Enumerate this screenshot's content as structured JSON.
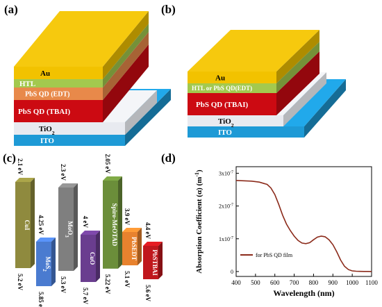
{
  "panels": {
    "a": {
      "label": "(a)",
      "layers": [
        "Au",
        "HTL",
        "PbS QD (EDT)",
        "PbS QD (TBAI)",
        "TiO",
        "ITO"
      ]
    },
    "b": {
      "label": "(b)",
      "layers": [
        "Au",
        "HTL or PbS QD(EDT)",
        "PbS QD (TBAI)",
        "TiO",
        "ITO"
      ]
    },
    "c": {
      "label": "(c)",
      "materials": [
        {
          "name": "CuI",
          "top": "2.1 eV",
          "bottom": "5.2 eV",
          "color": "#8f8a3e"
        },
        {
          "name": "MoS",
          "sub": "2",
          "top": "4.25 eV",
          "bottom": "5.85 eV",
          "color": "#4a7bd0"
        },
        {
          "name": "MoO",
          "sub": "3",
          "top": "2.3 eV",
          "bottom": "5.3 eV",
          "color": "#7f7f7f"
        },
        {
          "name": "CuO",
          "top": "4 eV",
          "bottom": "5.7 eV",
          "color": "#6a3d8f"
        },
        {
          "name": "Spiro-MeOTAD",
          "top": "2.05 eV",
          "bottom": "5.22 eV",
          "color": "#6b8e3a"
        },
        {
          "name": "PbSEDT",
          "top": "3.9 eV",
          "bottom": "5.1 eV",
          "color": "#e8822e"
        },
        {
          "name": "PbSTBAI",
          "top": "4.4 eV",
          "bottom": "5.6 eV",
          "color": "#c0171d"
        }
      ]
    },
    "d": {
      "label": "(d)"
    }
  },
  "tio_sub": "2",
  "chart_data": {
    "type": "line",
    "xlabel": "Wavelength (nm)",
    "ylabel": "Absorption Coefficient (α) (m",
    "ylabel_sup": "-1",
    "ylabel_close": ")",
    "xlim": [
      400,
      1100
    ],
    "ylim": [
      -1.5e-08,
      3.2e-07
    ],
    "x_ticks": [
      400,
      500,
      600,
      700,
      800,
      900,
      1000,
      1100
    ],
    "y_ticks": [
      {
        "value": 0,
        "label": "0"
      },
      {
        "value": 1e-07,
        "label": "1x10"
      },
      {
        "value": 2e-07,
        "label": "2x10"
      },
      {
        "value": 3e-07,
        "label": "3x10"
      }
    ],
    "y_tick_exp": "-7",
    "legend": "for PbS QD film",
    "legend_position": "bottom-left",
    "line_color": "#8b2a1a",
    "series": [
      {
        "x": [
          400,
          440,
          480,
          520,
          560,
          580,
          600,
          620,
          640,
          660,
          680,
          700,
          720,
          740,
          760,
          780,
          800,
          820,
          840,
          860,
          880,
          900,
          920,
          940,
          960,
          980,
          1000,
          1020,
          1040,
          1060,
          1080,
          1100
        ],
        "y": [
          2.78e-07,
          2.77e-07,
          2.76e-07,
          2.73e-07,
          2.66e-07,
          2.55e-07,
          2.35e-07,
          2.05e-07,
          1.72e-07,
          1.45e-07,
          1.25e-07,
          1.08e-07,
          9.5e-08,
          8.7e-08,
          8.5e-08,
          8.8e-08,
          9.7e-08,
          1.05e-07,
          1.08e-07,
          1.06e-07,
          9.7e-08,
          8.2e-08,
          6e-08,
          3.5e-08,
          1.6e-08,
          6e-09,
          2e-09,
          1e-09,
          5e-10,
          3e-10,
          2e-10,
          1e-10
        ]
      }
    ]
  }
}
